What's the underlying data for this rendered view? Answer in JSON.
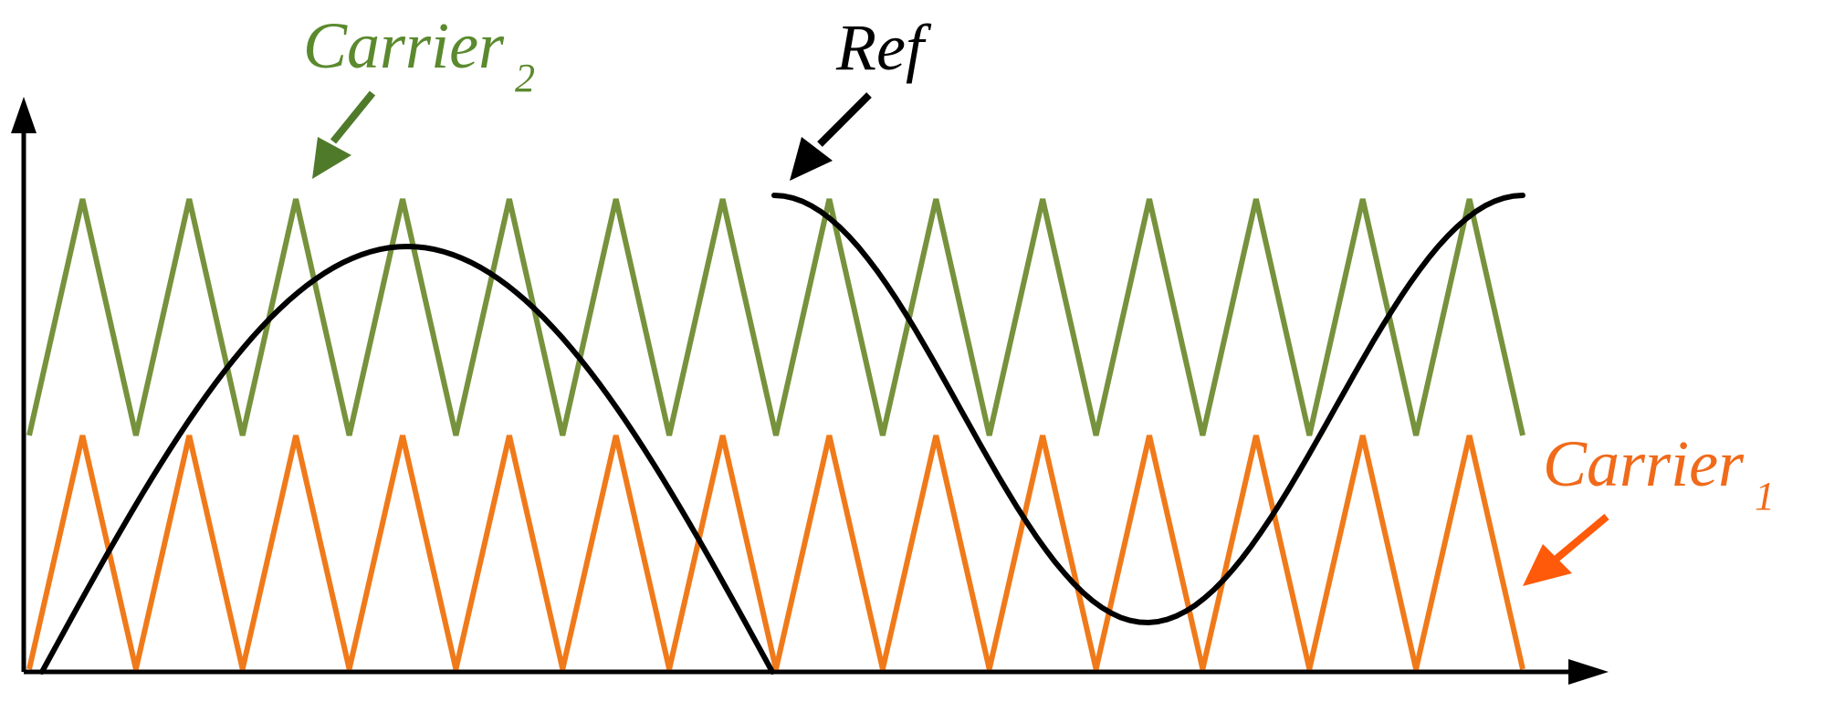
{
  "labels": {
    "carrier2": {
      "text": "Carrier",
      "subscript": "2"
    },
    "ref": {
      "text": "Ref"
    },
    "carrier1": {
      "text": "Carrier",
      "subscript": "1"
    }
  },
  "colors": {
    "carrier2": "#76923c",
    "carrier1": "#f07a1a",
    "ref": "#000000",
    "axis": "#000000",
    "carrier2_label": "#5b8a2e",
    "carrier2_arrow": "#4f7a2a",
    "carrier1_label": "#f06a1a",
    "carrier1_arrow": "#ff5a0a"
  },
  "waveforms": {
    "carrier_cycles": 14,
    "carrier2_range": [
      0.5,
      1.0
    ],
    "carrier1_range": [
      0.0,
      0.5
    ],
    "ref_shape": "sine"
  }
}
